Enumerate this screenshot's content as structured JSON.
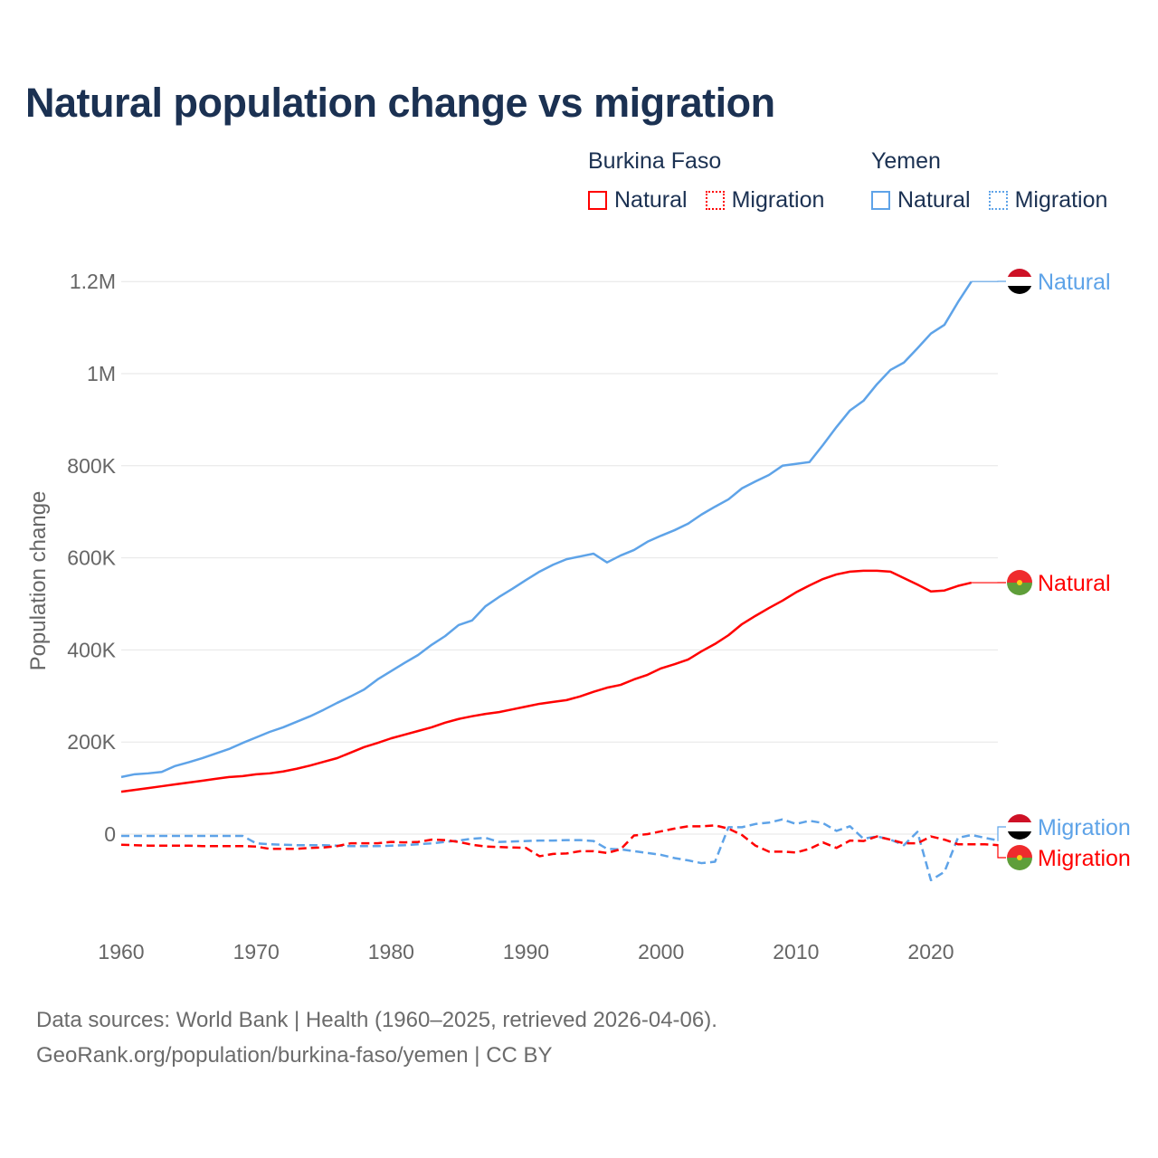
{
  "title": "Natural population change vs migration",
  "legend": {
    "groups": [
      {
        "name": "Burkina Faso",
        "color": "#ff0000",
        "items": [
          "Natural",
          "Migration"
        ]
      },
      {
        "name": "Yemen",
        "color": "#5ea3e8",
        "items": [
          "Natural",
          "Migration"
        ]
      }
    ]
  },
  "footer": {
    "line1": "Data sources: World Bank | Health (1960–2025, retrieved 2026-04-06).",
    "line2": "GeoRank.org/population/burkina-faso/yemen | CC BY"
  },
  "chart_data": {
    "type": "line",
    "title": "Natural population change vs migration",
    "xlabel": "",
    "ylabel": "Population change",
    "xlim": [
      1960,
      2025
    ],
    "ylim": [
      -150000,
      1200000
    ],
    "x_ticks": [
      "1960",
      "1970",
      "1980",
      "1990",
      "2000",
      "2010",
      "2020"
    ],
    "y_ticks": [
      {
        "v": 0,
        "t": "0"
      },
      {
        "v": 200000,
        "t": "200K"
      },
      {
        "v": 400000,
        "t": "400K"
      },
      {
        "v": 600000,
        "t": "600K"
      },
      {
        "v": 800000,
        "t": "800K"
      },
      {
        "v": 1000000,
        "t": "1M"
      },
      {
        "v": 1200000,
        "t": "1.2M"
      }
    ],
    "grid": true,
    "start_year": 1960,
    "series": [
      {
        "name": "Yemen Natural",
        "label": "Natural",
        "country": "Yemen",
        "style": "solid",
        "color": "#5ea3e8",
        "values_k": [
          124,
          130,
          132,
          135,
          148,
          156,
          165,
          175,
          185,
          198,
          210,
          222,
          232,
          244,
          256,
          270,
          285,
          299,
          314,
          336,
          354,
          372,
          389,
          411,
          430,
          454,
          464,
          495,
          515,
          533,
          552,
          570,
          585,
          597,
          603,
          609,
          590,
          605,
          617,
          635,
          648,
          660,
          674,
          694,
          711,
          727,
          751,
          766,
          780,
          800,
          804,
          808,
          845,
          884,
          920,
          941,
          977,
          1008,
          1024,
          1055,
          1087,
          1106,
          1155,
          1200
        ]
      },
      {
        "name": "Burkina Faso Natural",
        "label": "Natural",
        "country": "Burkina Faso",
        "style": "solid",
        "color": "#ff0000",
        "values_k": [
          92,
          96,
          100,
          104,
          108,
          112,
          116,
          120,
          124,
          126,
          130,
          132,
          136,
          142,
          149,
          157,
          165,
          177,
          189,
          198,
          208,
          216,
          224,
          232,
          242,
          250,
          256,
          261,
          265,
          271,
          277,
          283,
          287,
          291,
          299,
          309,
          318,
          324,
          336,
          346,
          360,
          369,
          379,
          397,
          413,
          432,
          456,
          474,
          491,
          507,
          525,
          540,
          554,
          564,
          570,
          572,
          572,
          570,
          556,
          542,
          527,
          529,
          539,
          546
        ]
      },
      {
        "name": "Yemen Migration",
        "label": "Migration",
        "country": "Yemen",
        "style": "dashed",
        "color": "#5ea3e8",
        "values_k": [
          -4,
          -4,
          -4,
          -4,
          -4,
          -4,
          -4,
          -4,
          -4,
          -4,
          -20,
          -22,
          -23,
          -24,
          -24,
          -24,
          -25,
          -26,
          -26,
          -26,
          -25,
          -24,
          -22,
          -20,
          -17,
          -14,
          -10,
          -8,
          -17,
          -16,
          -15,
          -14,
          -14,
          -13,
          -13,
          -15,
          -32,
          -33,
          -37,
          -41,
          -45,
          -52,
          -57,
          -63,
          -60,
          15,
          15,
          22,
          25,
          32,
          22,
          29,
          24,
          7,
          17,
          -10,
          -5,
          -12,
          -24,
          5,
          -100,
          -82,
          -8,
          -2,
          -8,
          -14
        ]
      },
      {
        "name": "Burkina Faso Migration",
        "label": "Migration",
        "country": "Burkina Faso",
        "style": "dashed",
        "color": "#ff0000",
        "values_k": [
          -23,
          -24,
          -25,
          -25,
          -25,
          -25,
          -26,
          -26,
          -26,
          -26,
          -27,
          -32,
          -32,
          -32,
          -30,
          -29,
          -26,
          -20,
          -20,
          -20,
          -17,
          -18,
          -17,
          -12,
          -13,
          -17,
          -23,
          -27,
          -28,
          -29,
          -30,
          -48,
          -43,
          -42,
          -37,
          -37,
          -41,
          -33,
          -3,
          0,
          6,
          12,
          17,
          17,
          19,
          12,
          -2,
          -25,
          -38,
          -38,
          -40,
          -32,
          -18,
          -30,
          -14,
          -15,
          -5,
          -12,
          -20,
          -20,
          -5,
          -12,
          -22,
          -22,
          -22,
          -24
        ]
      }
    ]
  }
}
